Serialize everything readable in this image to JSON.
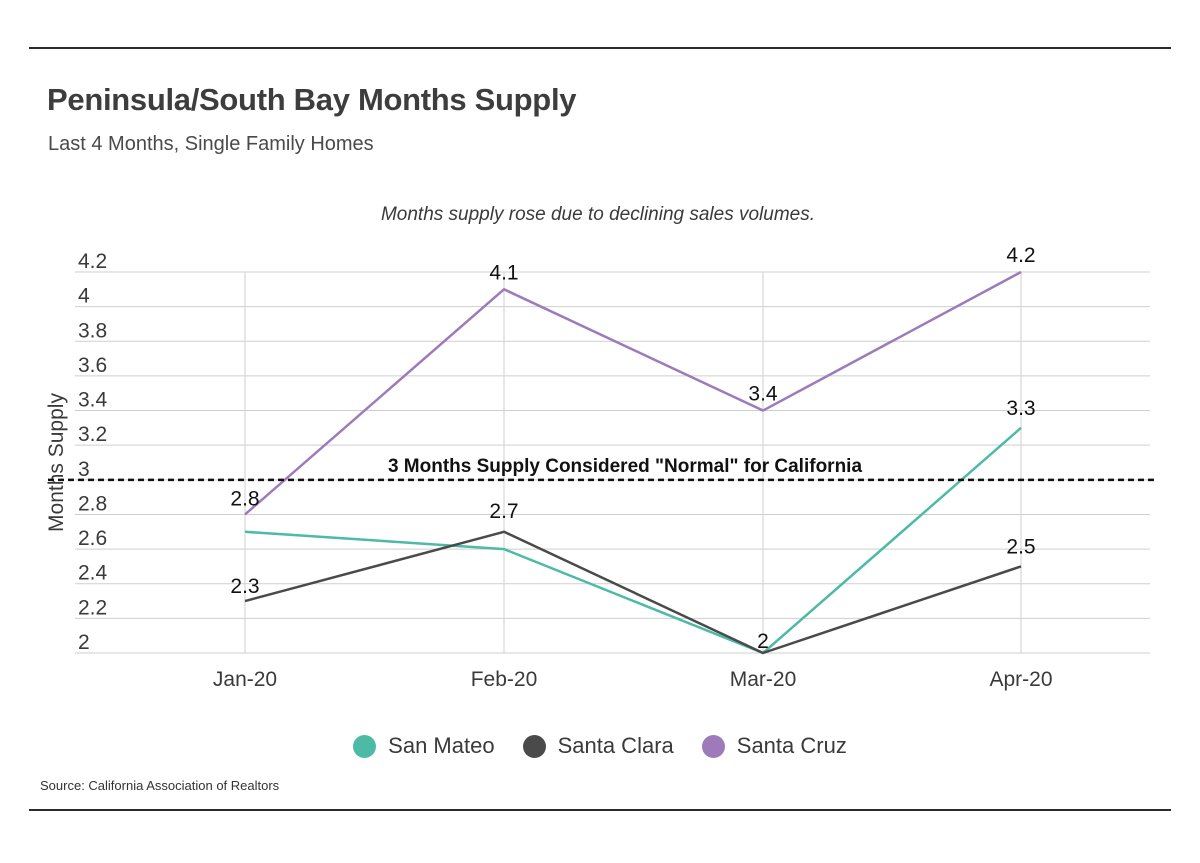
{
  "header": {
    "title": "Peninsula/South Bay Months Supply",
    "subtitle": "Last 4 Months, Single Family Homes"
  },
  "source": "Source:  California Association of Realtors",
  "chart_data": {
    "type": "line",
    "annotation": "Months supply rose due to declining sales volumes.",
    "reference_line": {
      "value": 3,
      "label": "3 Months Supply Considered \"Normal\" for California",
      "style": "dashed"
    },
    "xlabel": "",
    "ylabel": "Months Supply",
    "ylim": [
      2,
      4.2
    ],
    "yticks": [
      "2",
      "2.2",
      "2.4",
      "2.6",
      "2.8",
      "3",
      "3.2",
      "3.4",
      "3.6",
      "3.8",
      "4",
      "4.2"
    ],
    "categories": [
      "Jan-20",
      "Feb-20",
      "Mar-20",
      "Apr-20"
    ],
    "grid": true,
    "legend_position": "bottom-center",
    "series": [
      {
        "name": "San Mateo",
        "color": "#4dbaa6",
        "values": [
          2.7,
          2.6,
          2.0,
          3.3
        ],
        "labels": [
          "",
          "",
          "",
          "3.3"
        ]
      },
      {
        "name": "Santa Clara",
        "color": "#4a4a4a",
        "values": [
          2.3,
          2.7,
          2.0,
          2.5
        ],
        "labels": [
          "2.3",
          "2.7",
          "2",
          "2.5"
        ]
      },
      {
        "name": "Santa Cruz",
        "color": "#9d7bbb",
        "values": [
          2.8,
          4.1,
          3.4,
          4.2
        ],
        "labels": [
          "2.8",
          "4.1",
          "3.4",
          "4.2"
        ]
      }
    ]
  }
}
